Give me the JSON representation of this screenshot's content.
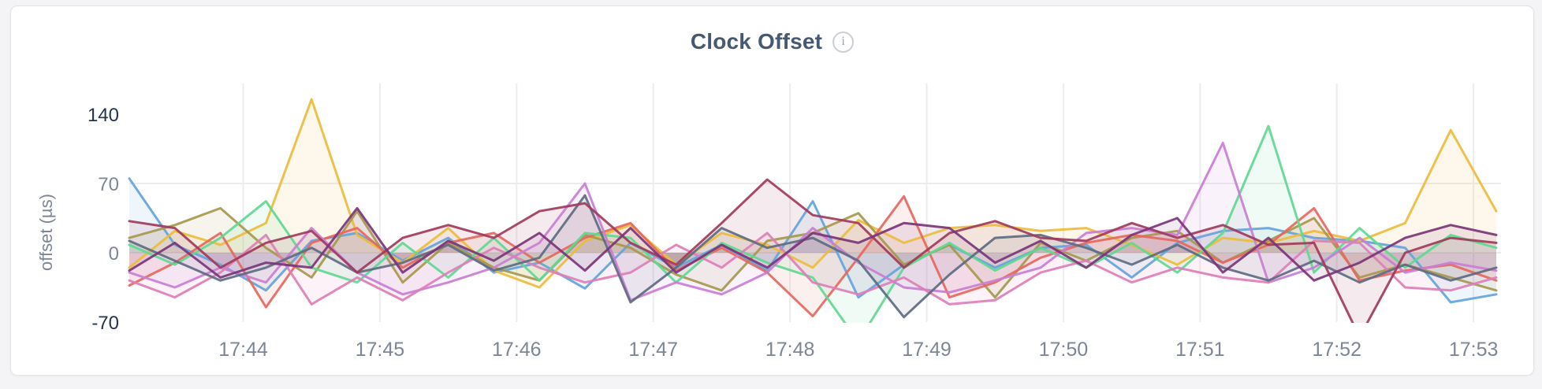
{
  "page": {
    "background_color": "#f4f4f6"
  },
  "card": {
    "background_color": "#ffffff",
    "border_color": "#e2e3e7"
  },
  "header": {
    "title": "Clock Offset",
    "info_icon_glyph": "i"
  },
  "axis_style": {
    "x_tick_color": "#7d8696",
    "y_tick_color": "#7d8696",
    "y_tick_emphasis_color": "#24334f",
    "axis_title_color": "#7d8696",
    "gridline_color": "#ececef"
  },
  "chart_data": {
    "type": "line",
    "title": "Clock Offset",
    "xlabel": "",
    "ylabel": "offset (µs)",
    "x_start_time": "17:43:10",
    "x_step_seconds": 20,
    "x_tick_labels": [
      "17:44",
      "17:45",
      "17:46",
      "17:47",
      "17:48",
      "17:49",
      "17:50",
      "17:51",
      "17:52",
      "17:53"
    ],
    "y_ticks": [
      {
        "label": "140",
        "value": 140,
        "emphasis": true
      },
      {
        "label": "70",
        "value": 70,
        "emphasis": false
      },
      {
        "label": "0",
        "value": 0,
        "emphasis": false
      },
      {
        "label": "-70",
        "value": -70,
        "emphasis": true
      }
    ],
    "h_gridline_values": [
      70,
      0
    ],
    "ylim": [
      -70,
      170
    ],
    "grid": true,
    "legend": "none",
    "line_width": 3,
    "area_fill_opacity": 0.1,
    "series": [
      {
        "name": "s1-blue",
        "color": "#66A3DB",
        "values": [
          75,
          8,
          -12,
          -38,
          12,
          20,
          -8,
          15,
          -20,
          -10,
          -36,
          10,
          -15,
          8,
          -18,
          52,
          -45,
          -12,
          8,
          -15,
          5,
          8,
          -25,
          10,
          22,
          25,
          15,
          12,
          5,
          -50,
          -42
        ]
      },
      {
        "name": "s2-golden",
        "color": "#EBBC3D",
        "values": [
          -15,
          22,
          8,
          30,
          155,
          18,
          -10,
          25,
          -18,
          -35,
          12,
          28,
          -12,
          20,
          8,
          -15,
          33,
          10,
          25,
          28,
          22,
          25,
          8,
          -12,
          15,
          10,
          22,
          12,
          30,
          124,
          42
        ]
      },
      {
        "name": "s3-olive",
        "color": "#A6984F",
        "values": [
          15,
          28,
          45,
          5,
          -25,
          42,
          -30,
          10,
          -15,
          -28,
          18,
          5,
          -22,
          -38,
          12,
          20,
          40,
          -12,
          8,
          -45,
          10,
          -8,
          15,
          22,
          -10,
          12,
          35,
          -25,
          -12,
          -25,
          -38
        ]
      },
      {
        "name": "s4-salmon",
        "color": "#E5685F",
        "values": [
          -33,
          -10,
          20,
          -55,
          10,
          25,
          -15,
          10,
          20,
          -10,
          15,
          30,
          -18,
          5,
          -20,
          -64,
          -5,
          57,
          -45,
          -30,
          -5,
          10,
          18,
          12,
          -10,
          8,
          45,
          -28,
          -18,
          -12,
          -28
        ]
      },
      {
        "name": "s5-green",
        "color": "#5FD892",
        "values": [
          8,
          -12,
          15,
          52,
          -15,
          -30,
          10,
          -25,
          15,
          -28,
          20,
          15,
          -30,
          10,
          -10,
          -25,
          -90,
          -15,
          10,
          -18,
          5,
          -15,
          10,
          -20,
          20,
          128,
          -20,
          25,
          -15,
          18,
          5
        ]
      },
      {
        "name": "s6-orchid",
        "color": "#C97ED4",
        "values": [
          -20,
          -35,
          -15,
          -30,
          25,
          -20,
          -42,
          -30,
          -15,
          10,
          70,
          -48,
          -30,
          -42,
          -20,
          25,
          -10,
          -35,
          -40,
          -28,
          -15,
          20,
          25,
          18,
          111,
          -30,
          -15,
          15,
          -20,
          -10,
          -18
        ]
      },
      {
        "name": "s7-pink",
        "color": "#DD7FB7",
        "values": [
          -28,
          -45,
          -20,
          18,
          -52,
          -25,
          -48,
          -20,
          5,
          -15,
          -30,
          -20,
          8,
          -15,
          20,
          -30,
          -42,
          -25,
          -52,
          -48,
          -20,
          -8,
          -30,
          -15,
          -25,
          -30,
          12,
          10,
          -35,
          -38,
          -25
        ]
      },
      {
        "name": "s8-slate",
        "color": "#5E6B81",
        "values": [
          12,
          -8,
          -28,
          -15,
          5,
          -20,
          -10,
          8,
          -18,
          -5,
          58,
          -50,
          -15,
          25,
          5,
          15,
          -8,
          -65,
          -22,
          15,
          18,
          5,
          -12,
          8,
          -15,
          -28,
          -8,
          -30,
          -12,
          -28,
          -15
        ]
      },
      {
        "name": "s9-maroon",
        "color": "#A03B5C",
        "values": [
          32,
          25,
          -15,
          10,
          22,
          -20,
          15,
          28,
          15,
          42,
          50,
          10,
          -12,
          30,
          74,
          38,
          30,
          -15,
          20,
          32,
          15,
          12,
          30,
          15,
          28,
          8,
          10,
          -85,
          0,
          15,
          10
        ]
      },
      {
        "name": "s10-eggplant",
        "color": "#7B3577",
        "values": [
          -18,
          10,
          -25,
          -10,
          -15,
          45,
          -20,
          12,
          -8,
          20,
          -18,
          25,
          -20,
          8,
          -15,
          20,
          10,
          30,
          25,
          -10,
          12,
          -15,
          18,
          35,
          -20,
          15,
          -28,
          -10,
          15,
          28,
          18
        ]
      }
    ]
  }
}
